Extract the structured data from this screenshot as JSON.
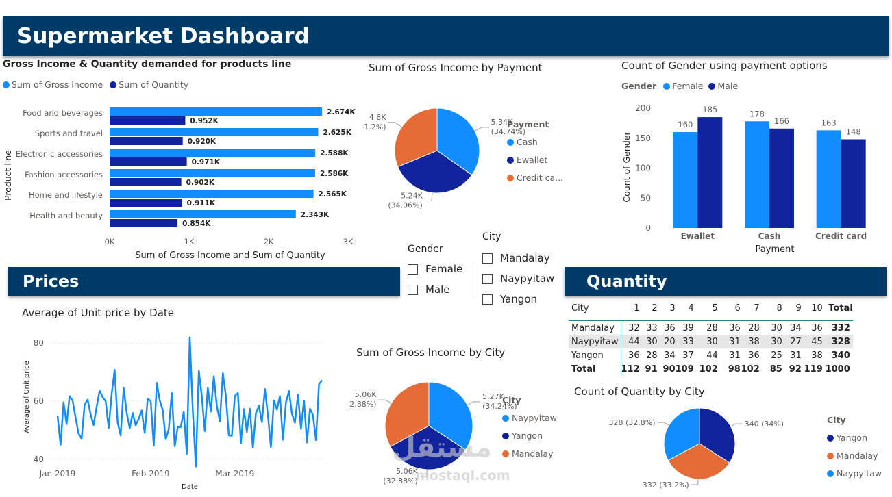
{
  "title": "Supermarket Dashboard",
  "sections": {
    "prices": "Prices",
    "quantity": "Quantity"
  },
  "colors": {
    "banner": "#003a66",
    "light_blue": "#118dff",
    "dark_blue": "#12239e",
    "orange": "#e66c37"
  },
  "bar_chart": {
    "title": "Gross Income & Quantity demanded for products line",
    "legend": [
      "Sum of Gross Income",
      "Sum of Quantity"
    ],
    "ylabel": "Product line",
    "xlabel": "Sum of Gross Income and Sum of Quantity",
    "ticks": [
      "0K",
      "1K",
      "2K",
      "3K"
    ]
  },
  "pie_payment": {
    "title": "Sum of Gross Income by Payment",
    "legend_title": "Payment",
    "legend": [
      "Cash",
      "Ewallet",
      "Credit ca..."
    ]
  },
  "gender_chart": {
    "title": "Count of Gender using payment options",
    "legend_title": "Gender",
    "legend": [
      "Female",
      "Male"
    ],
    "ylabel": "Count of Gender",
    "xlabel": "Payment",
    "yticks": [
      "0",
      "50",
      "100",
      "150",
      "200"
    ]
  },
  "slicer_gender": {
    "title": "Gender",
    "options": [
      "Female",
      "Male"
    ]
  },
  "slicer_city": {
    "title": "City",
    "options": [
      "Mandalay",
      "Naypyitaw",
      "Yangon"
    ]
  },
  "line_chart": {
    "title": "Average of Unit price by Date",
    "ylabel": "Average of Unit price",
    "xlabel": "Date",
    "yticks": [
      "40",
      "60",
      "80"
    ],
    "xticks": [
      "Jan 2019",
      "Feb 2019",
      "Mar 2019"
    ]
  },
  "pie_city_income": {
    "title": "Sum of Gross Income by City",
    "legend_title": "City",
    "legend": [
      "Naypyitaw",
      "Yangon",
      "Mandalay"
    ]
  },
  "pie_city_quantity": {
    "title": "Count of Quantity by City",
    "legend_title": "City",
    "legend": [
      "Yangon",
      "Mandalay",
      "Naypyitaw"
    ]
  },
  "matrix": {
    "headers": [
      "City",
      "1",
      "2",
      "3",
      "4",
      "5",
      "6",
      "7",
      "8",
      "9",
      "10",
      "Total"
    ],
    "rows": [
      [
        "Mandalay",
        "32",
        "33",
        "36",
        "39",
        "28",
        "36",
        "28",
        "30",
        "34",
        "36",
        "332"
      ],
      [
        "Naypyitaw",
        "44",
        "30",
        "20",
        "33",
        "30",
        "31",
        "38",
        "30",
        "27",
        "45",
        "328"
      ],
      [
        "Yangon",
        "36",
        "28",
        "34",
        "37",
        "44",
        "31",
        "36",
        "25",
        "31",
        "38",
        "340"
      ],
      [
        "Total",
        "112",
        "91",
        "90",
        "109",
        "102",
        "98",
        "102",
        "85",
        "92",
        "119",
        "1000"
      ]
    ]
  },
  "watermark": {
    "text": "مستقل",
    "sub": "mostaql.com"
  },
  "chart_data": [
    {
      "type": "bar",
      "title": "Gross Income & Quantity demanded for products line",
      "categories": [
        "Food and beverages",
        "Sports and travel",
        "Electronic accessories",
        "Fashion accessories",
        "Home and lifestyle",
        "Health and beauty"
      ],
      "series": [
        {
          "name": "Sum of Gross Income",
          "values": [
            2674,
            2625,
            2588,
            2586,
            2565,
            2343
          ],
          "labels": [
            "2.674K",
            "2.625K",
            "2.588K",
            "2.586K",
            "2.565K",
            "2.343K"
          ]
        },
        {
          "name": "Sum of Quantity",
          "values": [
            952,
            920,
            971,
            902,
            911,
            854
          ],
          "labels": [
            "0.952K",
            "0.920K",
            "0.971K",
            "0.902K",
            "0.911K",
            "0.854K"
          ]
        }
      ],
      "xlim": [
        0,
        3000
      ],
      "xlabel": "Sum of Gross Income and Sum of Quantity",
      "ylabel": "Product line",
      "legend_position": "top-left"
    },
    {
      "type": "pie",
      "title": "Sum of Gross Income by Payment",
      "labels": [
        "Cash",
        "Ewallet",
        "Credit card"
      ],
      "values": [
        5340,
        5240,
        4800
      ],
      "data_labels": [
        [
          "5.34K",
          "(34.74%)"
        ],
        [
          "5.24K",
          "(34.06%)"
        ],
        [
          "4.8K",
          "(31.2%)"
        ]
      ],
      "legend_position": "right"
    },
    {
      "type": "bar",
      "title": "Count of Gender using payment options",
      "categories": [
        "Ewallet",
        "Cash",
        "Credit card"
      ],
      "series": [
        {
          "name": "Female",
          "values": [
            160,
            178,
            163
          ]
        },
        {
          "name": "Male",
          "values": [
            185,
            166,
            148
          ]
        }
      ],
      "ylim": [
        0,
        200
      ],
      "xlabel": "Payment",
      "ylabel": "Count of Gender",
      "legend_position": "top-left"
    },
    {
      "type": "line",
      "title": "Average of Unit price by Date",
      "xlabel": "Date",
      "ylabel": "Average of Unit price",
      "x_start": "2019-01-01",
      "x_end": "2019-03-30",
      "ylim": [
        35,
        85
      ],
      "values": [
        55.0,
        45.0,
        59.6,
        52.1,
        61.7,
        60.3,
        54.3,
        48.8,
        47.0,
        58.8,
        60.5,
        55.4,
        51.8,
        58.0,
        63.6,
        61.4,
        60.0,
        50.8,
        62.5,
        70.8,
        52.7,
        48.2,
        64.6,
        56.0,
        50.7,
        55.9,
        51.7,
        53.9,
        56.8,
        49.1,
        60.8,
        60.1,
        44.7,
        66.3,
        60.3,
        56.9,
        46.9,
        50.4,
        62.8,
        44.5,
        51.2,
        51.1,
        56.3,
        41.9,
        82.0,
        56.7,
        37.5,
        70.5,
        61.8,
        49.7,
        64.6,
        56.4,
        68.6,
        58.3,
        53.1,
        69.6,
        62.0,
        48.2,
        48.1,
        61.8,
        62.8,
        45.6,
        57.3,
        49.4,
        57.4,
        44.0,
        55.8,
        58.4,
        52.8,
        64.2,
        55.2,
        44.2,
        60.3,
        57.1,
        61.7,
        46.7,
        59.6,
        63.5,
        55.7,
        52.6,
        62.3,
        50.5,
        60.2,
        45.8,
        57.4,
        55.2,
        46.6,
        65.8,
        67.2
      ]
    },
    {
      "type": "pie",
      "title": "Sum of Gross Income by City",
      "labels": [
        "Naypyitaw",
        "Yangon",
        "Mandalay"
      ],
      "values": [
        5270,
        5060,
        5060
      ],
      "data_labels": [
        [
          "5.27K",
          "(34.24%)"
        ],
        [
          "5.06K",
          "(32.88%)"
        ],
        [
          "5.06K",
          "(32.88%)"
        ]
      ],
      "legend_position": "right"
    },
    {
      "type": "pie",
      "title": "Count of Quantity by City",
      "labels": [
        "Yangon",
        "Mandalay",
        "Naypyitaw"
      ],
      "values": [
        340,
        332,
        328
      ],
      "data_labels": [
        "340 (34%)",
        "332 (33.2%)",
        "328 (32.8%)"
      ],
      "legend_position": "right"
    }
  ]
}
